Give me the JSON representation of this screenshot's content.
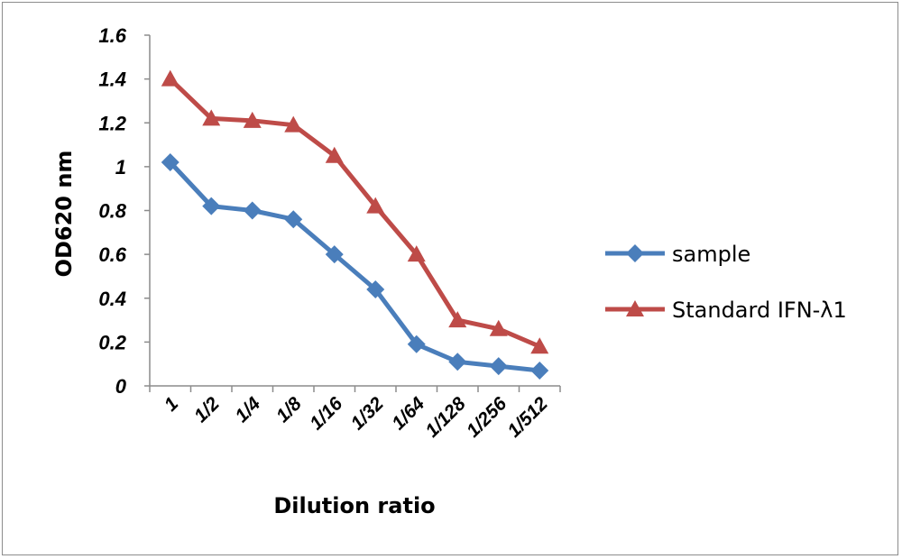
{
  "chart_data": {
    "type": "line",
    "categories": [
      "1",
      "1/2",
      "1/4",
      "1/8",
      "1/16",
      "1/32",
      "1/64",
      "1/128",
      "1/256",
      "1/512"
    ],
    "series": [
      {
        "name": "sample",
        "color": "#4a7ebb",
        "marker": "diamond",
        "values": [
          1.02,
          0.82,
          0.8,
          0.76,
          0.6,
          0.44,
          0.19,
          0.11,
          0.09,
          0.07
        ]
      },
      {
        "name": "Standard IFN-λ1",
        "color": "#be4b48",
        "marker": "triangle",
        "values": [
          1.4,
          1.22,
          1.21,
          1.19,
          1.05,
          0.82,
          0.6,
          0.3,
          0.26,
          0.18
        ]
      }
    ],
    "title": "",
    "xlabel": "Dilution ratio",
    "ylabel": "OD620 nm",
    "ylim": [
      0,
      1.6
    ],
    "yticks": [
      "0",
      "0.2",
      "0.4",
      "0.6",
      "0.8",
      "1",
      "1.2",
      "1.4",
      "1.6"
    ],
    "grid": false,
    "legend_position": "right"
  }
}
